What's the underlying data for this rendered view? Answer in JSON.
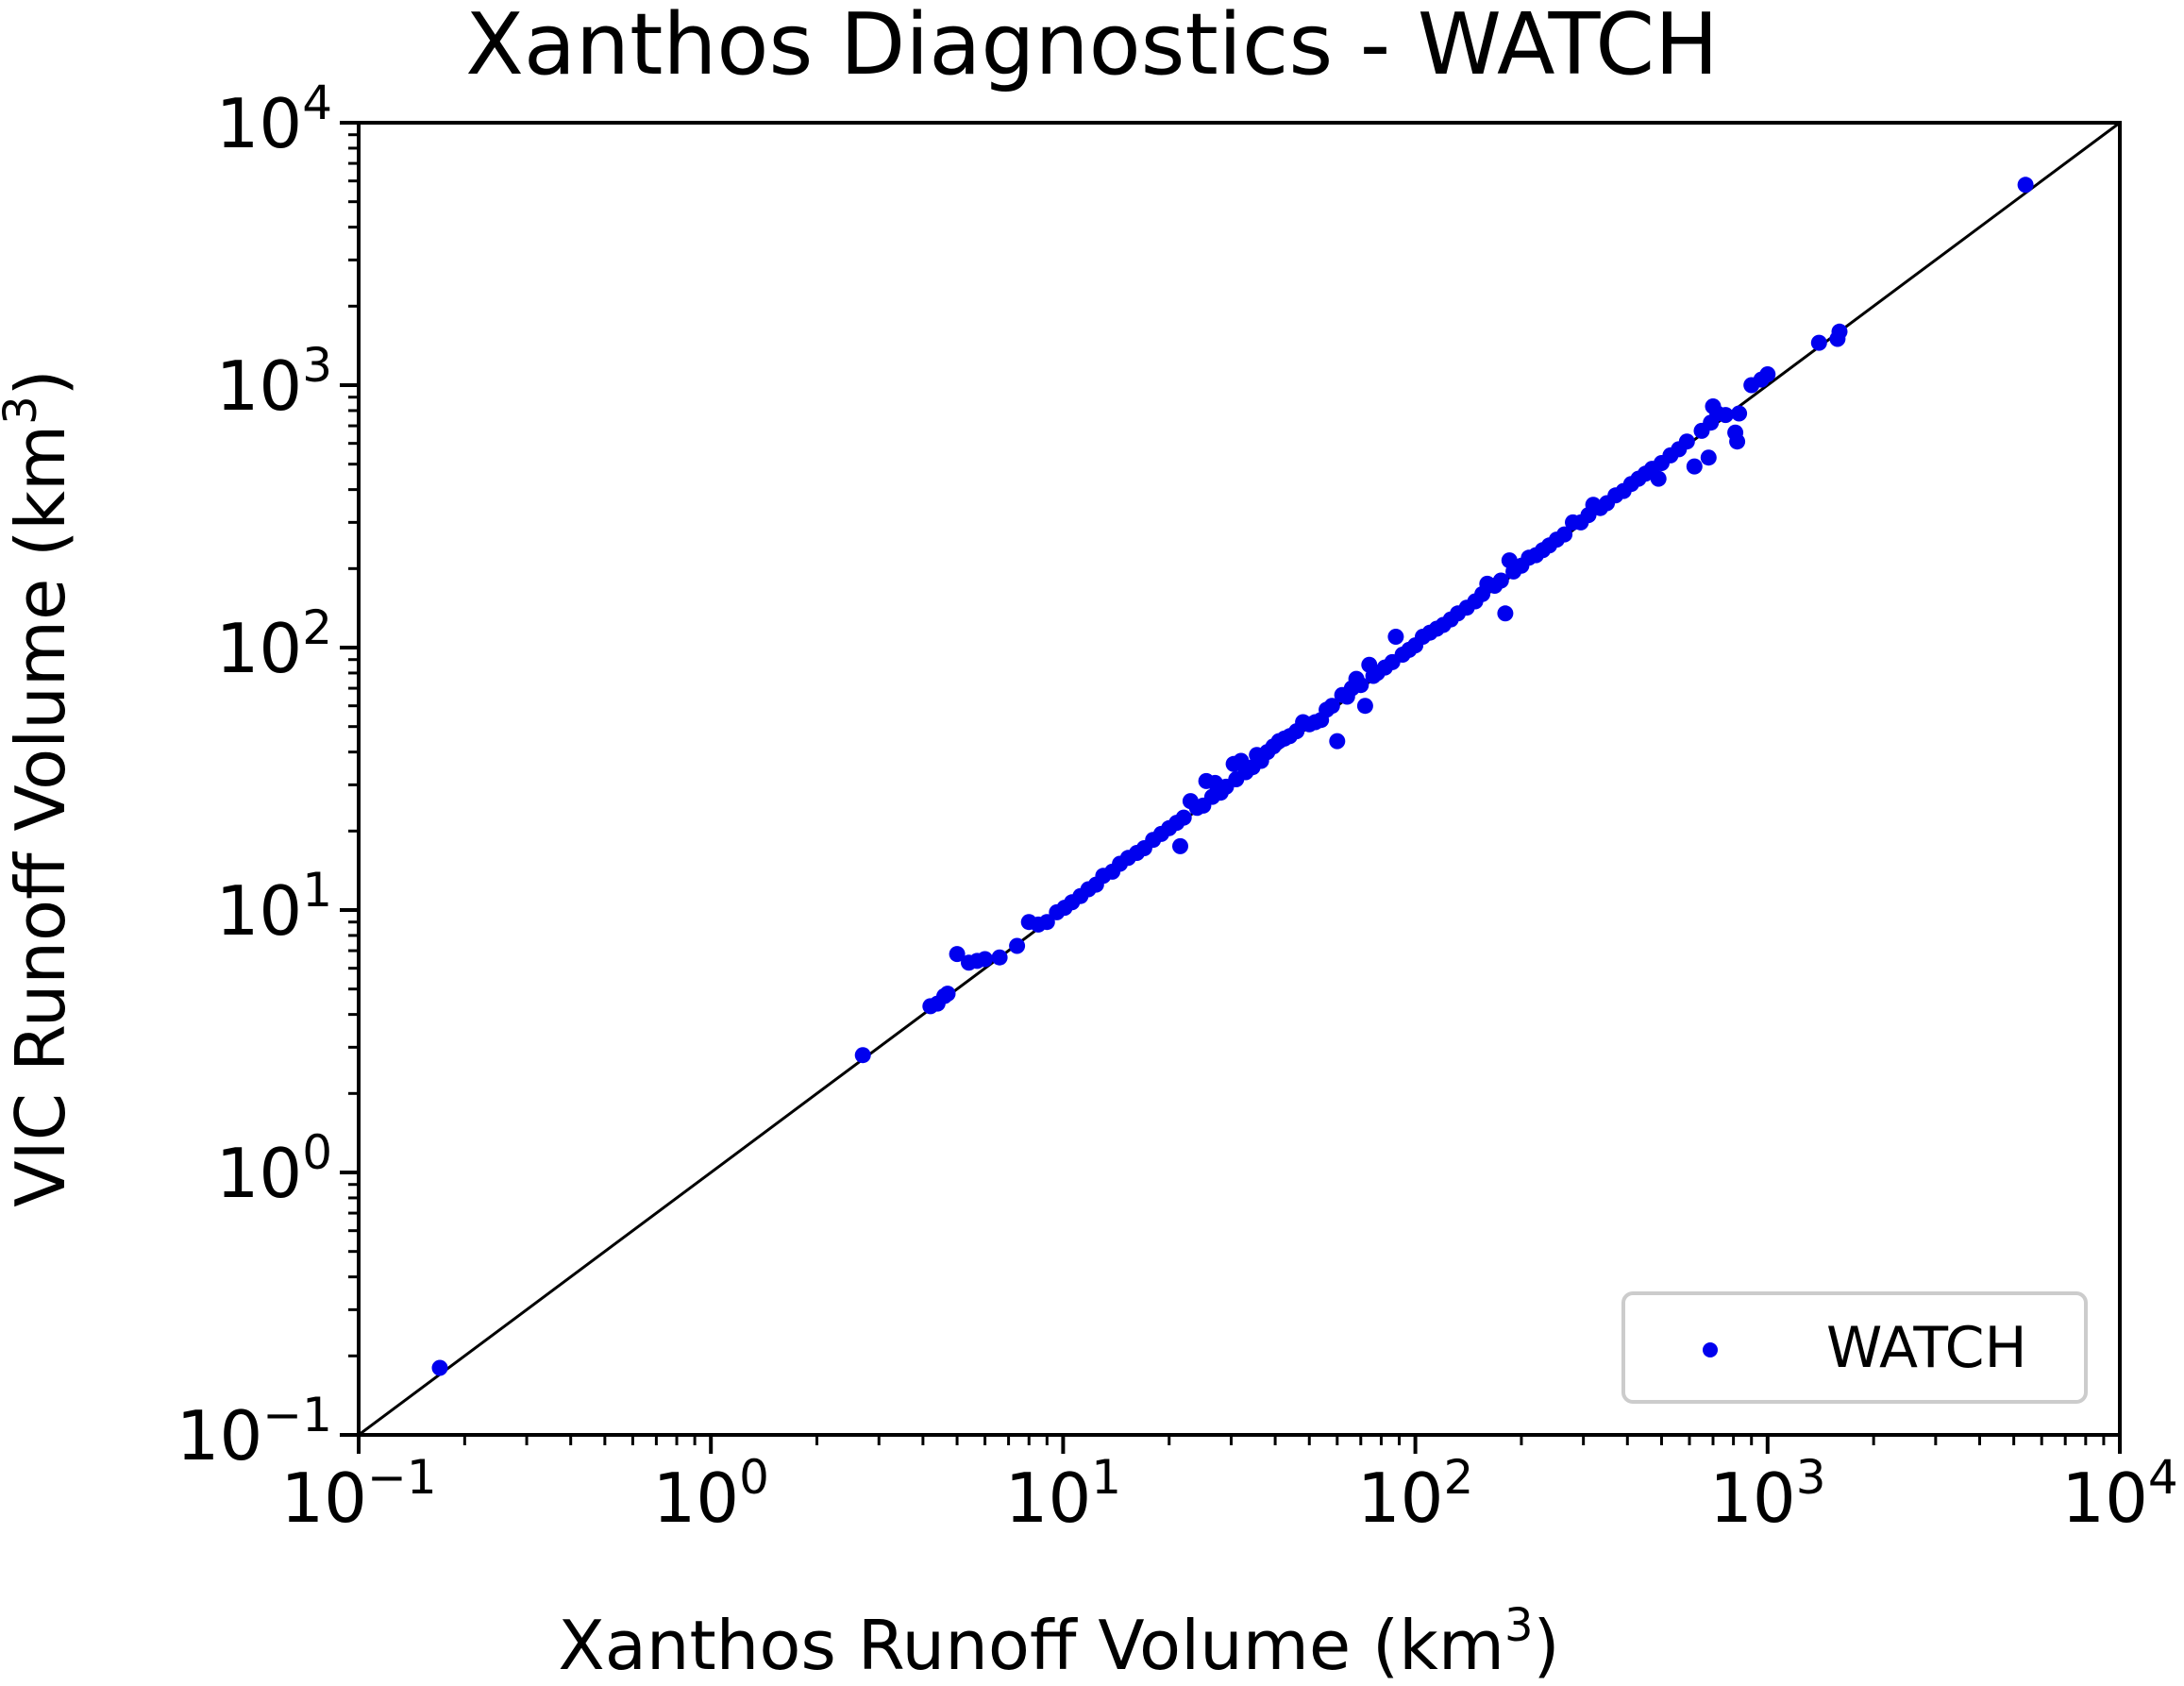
{
  "chart_data": {
    "type": "scatter",
    "title": "Xanthos Diagnostics - WATCH",
    "xlabel": "Xanthos Runoff Volume (km",
    "xlabel_sup": "3",
    "xlabel_end": ")",
    "ylabel": "VIC Runoff Volume (km",
    "ylabel_sup": "3",
    "ylabel_end": ")",
    "xscale": "log",
    "yscale": "log",
    "xlim": [
      0.1,
      10000
    ],
    "ylim": [
      0.1,
      10000
    ],
    "grid": false,
    "legend_position": "bottom-right",
    "reference_line": "1:1",
    "ticks": [
      {
        "base": "10",
        "exp": "−1",
        "value": 0.1
      },
      {
        "base": "10",
        "exp": "0",
        "value": 1
      },
      {
        "base": "10",
        "exp": "1",
        "value": 10
      },
      {
        "base": "10",
        "exp": "2",
        "value": 100
      },
      {
        "base": "10",
        "exp": "3",
        "value": 1000
      },
      {
        "base": "10",
        "exp": "4",
        "value": 10000
      }
    ],
    "series": [
      {
        "name": "WATCH",
        "color": "#0000ee",
        "points": [
          [
            0.17,
            0.18
          ],
          [
            2.7,
            2.8
          ],
          [
            4.2,
            4.3
          ],
          [
            4.4,
            4.4
          ],
          [
            4.6,
            4.7
          ],
          [
            4.7,
            4.8
          ],
          [
            5.0,
            6.8
          ],
          [
            5.4,
            6.3
          ],
          [
            5.7,
            6.4
          ],
          [
            6.0,
            6.5
          ],
          [
            6.6,
            6.6
          ],
          [
            7.4,
            7.3
          ],
          [
            8.0,
            9.0
          ],
          [
            8.5,
            8.8
          ],
          [
            9.0,
            9.0
          ],
          [
            9.6,
            9.8
          ],
          [
            10.1,
            10.2
          ],
          [
            10.6,
            10.7
          ],
          [
            11.2,
            11.3
          ],
          [
            11.8,
            12.0
          ],
          [
            12.4,
            12.5
          ],
          [
            13.0,
            13.5
          ],
          [
            13.8,
            14.0
          ],
          [
            14.5,
            15.0
          ],
          [
            15.3,
            15.8
          ],
          [
            16.2,
            16.5
          ],
          [
            17.0,
            17.2
          ],
          [
            18.0,
            18.5
          ],
          [
            19.0,
            19.5
          ],
          [
            20.0,
            20.5
          ],
          [
            21.0,
            21.5
          ],
          [
            21.5,
            17.5
          ],
          [
            22.0,
            22.5
          ],
          [
            23.0,
            26.0
          ],
          [
            24.0,
            24.5
          ],
          [
            25.0,
            25.0
          ],
          [
            25.5,
            31.0
          ],
          [
            26.5,
            27.0
          ],
          [
            27.0,
            30.5
          ],
          [
            28.0,
            28.0
          ],
          [
            29.0,
            29.5
          ],
          [
            30.5,
            36.0
          ],
          [
            31.0,
            31.5
          ],
          [
            32.0,
            37.0
          ],
          [
            33.0,
            33.5
          ],
          [
            34.5,
            35.0
          ],
          [
            35.5,
            39.0
          ],
          [
            36.5,
            37.0
          ],
          [
            38.0,
            40.0
          ],
          [
            39.5,
            42.0
          ],
          [
            41.0,
            44.0
          ],
          [
            42.5,
            45.0
          ],
          [
            44.0,
            46.0
          ],
          [
            46.0,
            48.0
          ],
          [
            48.0,
            52.0
          ],
          [
            50.0,
            51.0
          ],
          [
            52.0,
            52.0
          ],
          [
            54.0,
            53.0
          ],
          [
            56.0,
            58.0
          ],
          [
            58.0,
            60.0
          ],
          [
            60.0,
            44.0
          ],
          [
            62.0,
            66.0
          ],
          [
            64.0,
            65.0
          ],
          [
            66.0,
            70.0
          ],
          [
            68.0,
            76.0
          ],
          [
            70.0,
            72.0
          ],
          [
            72.0,
            60.0
          ],
          [
            74.0,
            86.0
          ],
          [
            76.0,
            78.0
          ],
          [
            78.0,
            80.0
          ],
          [
            82.0,
            84.0
          ],
          [
            86.0,
            88.0
          ],
          [
            88.0,
            110.0
          ],
          [
            92.0,
            94.0
          ],
          [
            96.0,
            98.0
          ],
          [
            100.0,
            102.0
          ],
          [
            105.0,
            110.0
          ],
          [
            110.0,
            114.0
          ],
          [
            115.0,
            118.0
          ],
          [
            120.0,
            122.0
          ],
          [
            126.0,
            128.0
          ],
          [
            132.0,
            135.0
          ],
          [
            140.0,
            142.0
          ],
          [
            148.0,
            150.0
          ],
          [
            155.0,
            160.0
          ],
          [
            160.0,
            175.0
          ],
          [
            168.0,
            172.0
          ],
          [
            175.0,
            180.0
          ],
          [
            180.0,
            135.0
          ],
          [
            185.0,
            215.0
          ],
          [
            190.0,
            195.0
          ],
          [
            200.0,
            205.0
          ],
          [
            210.0,
            220.0
          ],
          [
            220.0,
            225.0
          ],
          [
            230.0,
            235.0
          ],
          [
            240.0,
            245.0
          ],
          [
            252.0,
            258.0
          ],
          [
            265.0,
            270.0
          ],
          [
            280.0,
            300.0
          ],
          [
            295.0,
            300.0
          ],
          [
            310.0,
            320.0
          ],
          [
            320.0,
            350.0
          ],
          [
            335.0,
            340.0
          ],
          [
            350.0,
            355.0
          ],
          [
            370.0,
            380.0
          ],
          [
            390.0,
            395.0
          ],
          [
            410.0,
            420.0
          ],
          [
            430.0,
            440.0
          ],
          [
            450.0,
            460.0
          ],
          [
            470.0,
            480.0
          ],
          [
            490.0,
            440.0
          ],
          [
            500.0,
            505.0
          ],
          [
            530.0,
            540.0
          ],
          [
            560.0,
            570.0
          ],
          [
            590.0,
            610.0
          ],
          [
            620.0,
            490.0
          ],
          [
            650.0,
            670.0
          ],
          [
            680.0,
            530.0
          ],
          [
            690.0,
            720.0
          ],
          [
            700.0,
            830.0
          ],
          [
            720.0,
            780.0
          ],
          [
            760.0,
            770.0
          ],
          [
            810.0,
            660.0
          ],
          [
            820.0,
            610.0
          ],
          [
            830.0,
            780.0
          ],
          [
            900.0,
            1000.0
          ],
          [
            960.0,
            1050.0
          ],
          [
            1000.0,
            1100.0
          ],
          [
            1400.0,
            1450.0
          ],
          [
            1580.0,
            1500.0
          ],
          [
            1600.0,
            1600.0
          ],
          [
            5400.0,
            5800.0
          ]
        ]
      }
    ]
  }
}
